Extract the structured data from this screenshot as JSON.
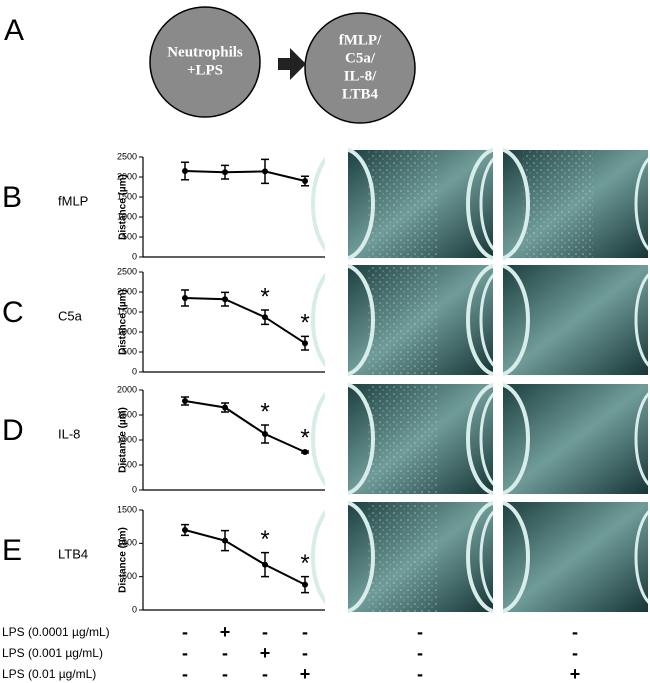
{
  "panel_labels": [
    "A",
    "B",
    "C",
    "D",
    "E"
  ],
  "diagram": {
    "nodes": [
      {
        "lines": [
          "Neutrophils",
          "+LPS"
        ]
      },
      {
        "lines": [
          "fMLP/",
          "C5a/",
          "IL-8/",
          "LTB4"
        ]
      }
    ]
  },
  "chart_data": [
    {
      "type": "line",
      "label": "fMLP",
      "y_label": "Distance (µm)",
      "categories": [
        null,
        null,
        null,
        null
      ],
      "values": [
        2150,
        2120,
        2140,
        1900
      ],
      "errors": [
        220,
        170,
        300,
        120
      ],
      "significance": [
        null,
        null,
        null,
        null
      ],
      "color": "#000000",
      "ylim": [
        0,
        2500
      ],
      "yticks": [
        0,
        500,
        1000,
        1500,
        2000,
        2500
      ]
    },
    {
      "type": "line",
      "label": "C5a",
      "y_label": "Distance (µm)",
      "categories": [
        null,
        null,
        null,
        null
      ],
      "values": [
        1850,
        1820,
        1370,
        720
      ],
      "errors": [
        200,
        170,
        180,
        170
      ],
      "significance": [
        null,
        null,
        "*",
        "*"
      ],
      "color": "#000000",
      "ylim": [
        0,
        2500
      ],
      "yticks": [
        0,
        500,
        1000,
        1500,
        2000,
        2500
      ]
    },
    {
      "type": "line",
      "label": "IL-8",
      "y_label": "Distance (µm)",
      "categories": [
        null,
        null,
        null,
        null
      ],
      "values": [
        1780,
        1650,
        1120,
        760
      ],
      "errors": [
        80,
        90,
        180,
        20
      ],
      "significance": [
        null,
        null,
        "*",
        "*"
      ],
      "color": "#000000",
      "ylim": [
        0,
        2000
      ],
      "yticks": [
        0,
        500,
        1000,
        1500,
        2000
      ]
    },
    {
      "type": "line",
      "label": "LTB4",
      "y_label": "Distance (µm)",
      "categories": [
        null,
        null,
        null,
        null
      ],
      "values": [
        1200,
        1040,
        680,
        380
      ],
      "errors": [
        80,
        150,
        180,
        120
      ],
      "significance": [
        null,
        null,
        "*",
        "*"
      ],
      "color": "#000000",
      "ylim": [
        0,
        1500
      ],
      "yticks": [
        0,
        500,
        1000,
        1500
      ]
    }
  ],
  "conditions": {
    "rows": [
      {
        "label": "LPS (0.0001 µg/mL)",
        "signs": [
          "-",
          "+",
          "-",
          "-",
          "-",
          "-"
        ]
      },
      {
        "label": "LPS (0.001 µg/mL)",
        "signs": [
          "-",
          "-",
          "+",
          "-",
          "-",
          "-"
        ]
      },
      {
        "label": "LPS (0.01 µg/mL)",
        "signs": [
          "-",
          "-",
          "-",
          "+",
          "-",
          "+"
        ]
      }
    ]
  }
}
